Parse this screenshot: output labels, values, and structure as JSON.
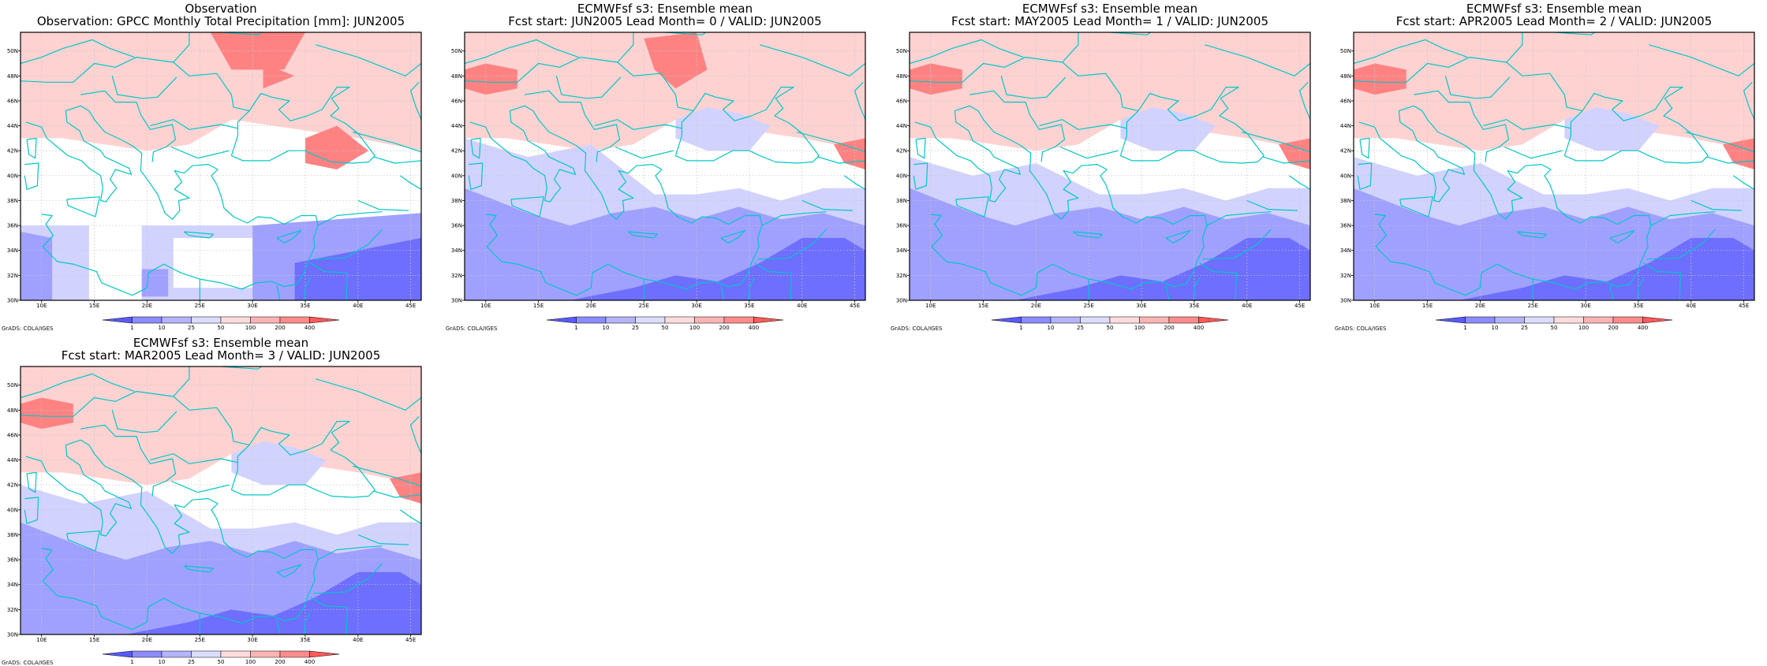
{
  "panels": [
    {
      "title_line1": "Observation",
      "title_line2": "Observation: GPCC Monthly Total Precipitation [mm]: JUN2005",
      "variant": 0
    },
    {
      "title_line1": "ECMWFsf s3: Ensemble mean",
      "title_line2": "Fcst start: JUN2005   Lead Month= 0 / VALID: JUN2005",
      "variant": 1
    },
    {
      "title_line1": "ECMWFsf s3: Ensemble mean",
      "title_line2": "Fcst start: MAY2005   Lead Month= 1 / VALID: JUN2005",
      "variant": 2
    },
    {
      "title_line1": "ECMWFsf s3: Ensemble mean",
      "title_line2": "Fcst start: APR2005   Lead Month= 2 / VALID: JUN2005",
      "variant": 3
    },
    {
      "title_line1": "ECMWFsf s3: Ensemble mean",
      "title_line2": "Fcst start: MAR2005   Lead Month= 3 / VALID: JUN2005",
      "variant": 4
    }
  ],
  "map": {
    "lon_range": [
      8,
      46
    ],
    "lat_range": [
      30,
      51.5
    ],
    "lon_ticks": [
      "10E",
      "15E",
      "20E",
      "25E",
      "30E",
      "35E",
      "40E",
      "45E"
    ],
    "lat_ticks": [
      "30N",
      "32N",
      "34N",
      "36N",
      "38N",
      "40N",
      "42N",
      "44N",
      "46N",
      "48N",
      "50N"
    ],
    "gridlines": true,
    "coastline_color": "#00c8c8"
  },
  "colorbar": {
    "labels": [
      "1",
      "10",
      "25",
      "50",
      "100",
      "200",
      "400"
    ],
    "colors": [
      "#5a5aff",
      "#8c8cff",
      "#b4b4ff",
      "#dcdcff",
      "#ffdcdc",
      "#ffb4b4",
      "#ff8c8c",
      "#ff5a5a"
    ]
  },
  "credit": "GrADS: COLA/IGES",
  "colors": {
    "blue_dark": "#6e6eff",
    "blue_mid": "#a0a0ff",
    "blue_light": "#d2d2ff",
    "red_light": "#ffd2d2",
    "red_mid": "#ffb4b4",
    "red_dark": "#ff8282",
    "coast": "#00c8c8",
    "grid": "#c8c8c8"
  }
}
